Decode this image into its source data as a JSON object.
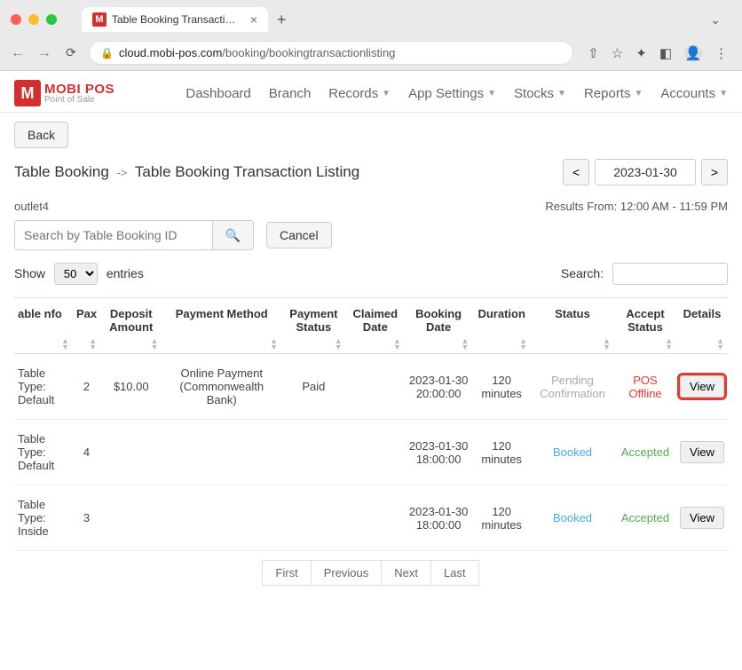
{
  "browser": {
    "tab_title": "Table Booking Transaction Listi",
    "url_host": "cloud.mobi-pos.com",
    "url_path": "/booking/bookingtransactionlisting"
  },
  "logo": {
    "brand": "MOBI POS",
    "sub": "Point of Sale",
    "letter": "M"
  },
  "nav": {
    "dashboard": "Dashboard",
    "branch": "Branch",
    "records": "Records",
    "app_settings": "App Settings",
    "stocks": "Stocks",
    "reports": "Reports",
    "accounts": "Accounts"
  },
  "buttons": {
    "back": "Back",
    "cancel": "Cancel",
    "prev_day": "<",
    "next_day": ">",
    "view": "View"
  },
  "breadcrumb": {
    "root": "Table Booking",
    "current": "Table Booking Transaction Listing"
  },
  "date_picker": {
    "value": "2023-01-30"
  },
  "outlet": {
    "name": "outlet4",
    "results_range": "Results From: 12:00 AM - 11:59 PM"
  },
  "search": {
    "placeholder": "Search by Table Booking ID"
  },
  "show": {
    "label_before": "Show",
    "label_after": "entries",
    "value": "50"
  },
  "table_search": {
    "label": "Search:"
  },
  "columns": {
    "table_info": "able nfo",
    "pax": "Pax",
    "deposit_amount": "Deposit Amount",
    "payment_method": "Payment Method",
    "payment_status": "Payment Status",
    "claimed_date": "Claimed Date",
    "booking_date": "Booking Date",
    "duration": "Duration",
    "status": "Status",
    "accept_status": "Accept Status",
    "details": "Details"
  },
  "rows": [
    {
      "table_info": "Table Type: Default",
      "pax": "2",
      "deposit_amount": "$10.00",
      "payment_method": "Online Payment (Commonwealth Bank)",
      "payment_status": "Paid",
      "claimed_date": "",
      "booking_date": "2023-01-30 20:00:00",
      "duration": "120 minutes",
      "status": "Pending Confirmation",
      "status_class": "status-pending",
      "accept_status": "POS Offline",
      "accept_class": "accept-offline",
      "highlighted": true
    },
    {
      "table_info": "Table Type: Default",
      "pax": "4",
      "deposit_amount": "",
      "payment_method": "",
      "payment_status": "",
      "claimed_date": "",
      "booking_date": "2023-01-30 18:00:00",
      "duration": "120 minutes",
      "status": "Booked",
      "status_class": "status-booked",
      "accept_status": "Accepted",
      "accept_class": "accept-accepted",
      "highlighted": false
    },
    {
      "table_info": "Table Type: Inside",
      "pax": "3",
      "deposit_amount": "",
      "payment_method": "",
      "payment_status": "",
      "claimed_date": "",
      "booking_date": "2023-01-30 18:00:00",
      "duration": "120 minutes",
      "status": "Booked",
      "status_class": "status-booked",
      "accept_status": "Accepted",
      "accept_class": "accept-accepted",
      "highlighted": false
    }
  ],
  "pagination": {
    "first": "First",
    "previous": "Previous",
    "next": "Next",
    "last": "Last"
  }
}
